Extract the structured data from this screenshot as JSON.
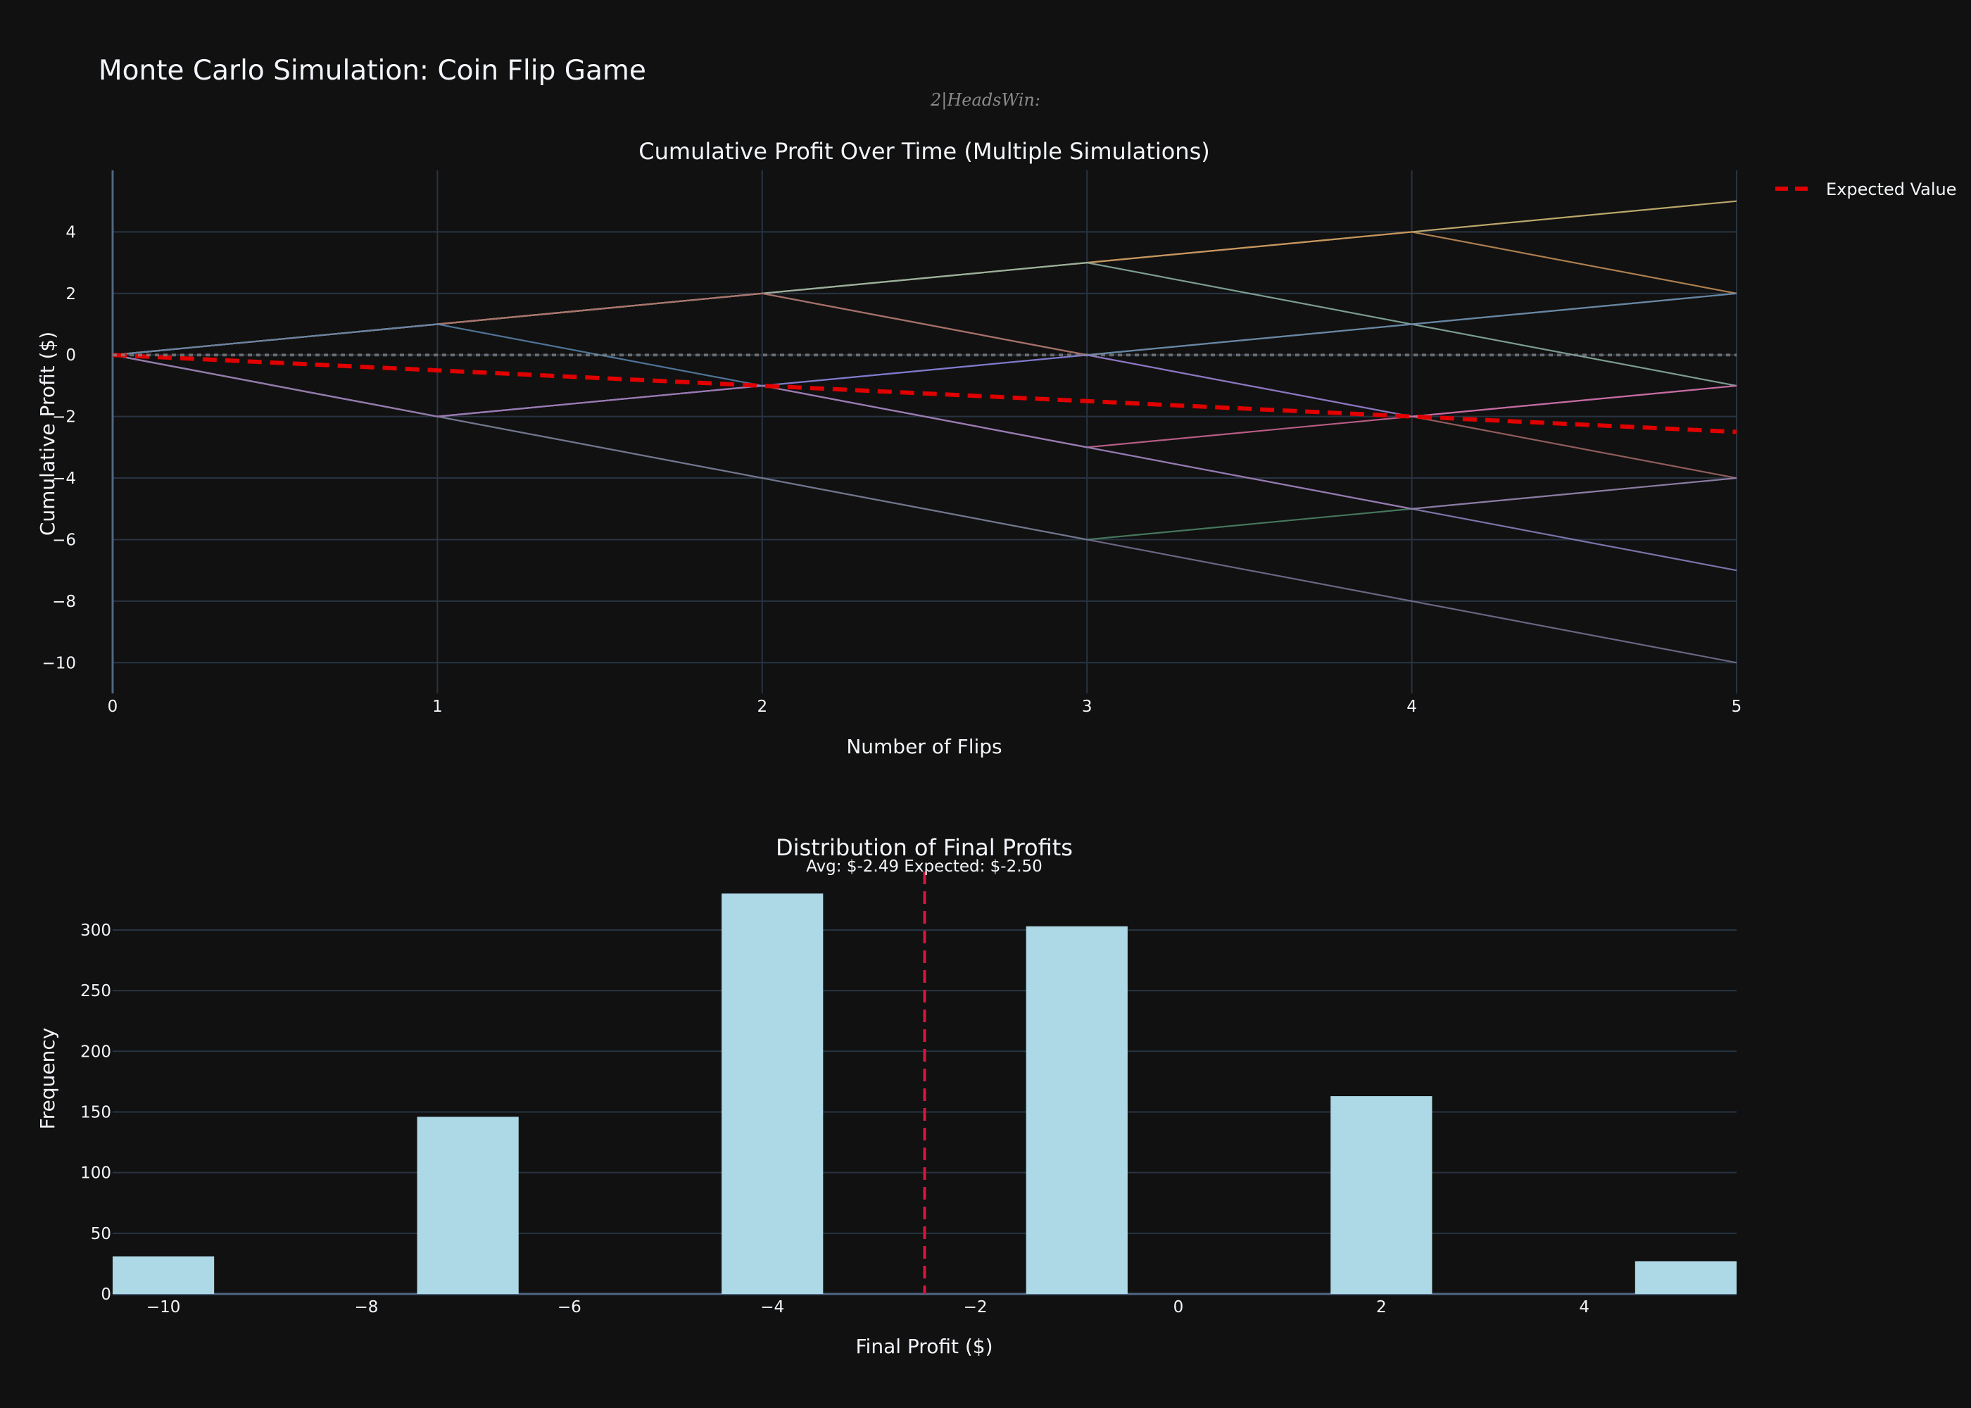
{
  "title": "Monte Carlo Simulation: Coin Flip Game",
  "subtitle": "2|HeadsWin:",
  "chart_data": [
    {
      "type": "line",
      "title": "Cumulative Profit Over Time (Multiple Simulations)",
      "xlabel": "Number of Flips",
      "ylabel": "Cumulative Profit ($)",
      "xlim": [
        0,
        5
      ],
      "ylim": [
        -11,
        6
      ],
      "xticks": [
        0,
        1,
        2,
        3,
        4,
        5
      ],
      "yticks": [
        4,
        2,
        0,
        -2,
        -4,
        -6,
        -8,
        -10
      ],
      "tick_labels_x": [
        "0",
        "1",
        "2",
        "3",
        "4",
        "5"
      ],
      "tick_labels_y": [
        "4",
        "2",
        "0",
        "−2",
        "−4",
        "−6",
        "−8",
        "−10"
      ],
      "grid": true,
      "legend": "top-right",
      "x": [
        0,
        1,
        2,
        3,
        4,
        5
      ],
      "series": [
        {
          "values": [
            0,
            1,
            2,
            3,
            4,
            5
          ],
          "color": "#d9c27a"
        },
        {
          "values": [
            0,
            1,
            2,
            3,
            4,
            2
          ],
          "color": "#c9935a"
        },
        {
          "values": [
            0,
            1,
            2,
            3,
            1,
            -1
          ],
          "color": "#8fb5a8"
        },
        {
          "values": [
            0,
            1,
            2,
            0,
            1,
            2
          ],
          "color": "#b8a57c"
        },
        {
          "values": [
            0,
            1,
            2,
            0,
            -2,
            -4
          ],
          "color": "#a86a6a"
        },
        {
          "values": [
            0,
            1,
            -1,
            0,
            1,
            2
          ],
          "color": "#5b86b0"
        },
        {
          "values": [
            0,
            -2,
            -1,
            0,
            -2,
            -1
          ],
          "color": "#8a7ad6"
        },
        {
          "values": [
            0,
            -2,
            -1,
            -3,
            -2,
            -1
          ],
          "color": "#d66a9a"
        },
        {
          "values": [
            0,
            -2,
            -1,
            -3,
            -5,
            -7
          ],
          "color": "#8c86c4"
        },
        {
          "values": [
            0,
            -2,
            -4,
            -6,
            -5,
            -4
          ],
          "color": "#4f8a6a"
        },
        {
          "values": [
            0,
            -2,
            -4,
            -6,
            -8,
            -10
          ],
          "color": "#7a7496"
        },
        {
          "values": [
            0,
            -2,
            -1,
            -3,
            -5,
            -4
          ],
          "color": "#9a7ab0"
        },
        {
          "name": "Expected Value",
          "values": [
            0,
            -0.5,
            -1,
            -1.5,
            -2,
            -2.5
          ],
          "color": "#e00000",
          "dash": true
        },
        {
          "values": [
            0,
            0,
            0,
            0,
            0,
            0
          ],
          "color": "#8a8a8a",
          "dash": true,
          "hline": true
        }
      ]
    },
    {
      "type": "bar",
      "title": "Distribution of Final Profits",
      "xlabel": "Final Profit ($)",
      "ylabel": "Frequency",
      "xlim": [
        -10.5,
        5.5
      ],
      "ylim": [
        0,
        340
      ],
      "xticks": [
        -10,
        -8,
        -6,
        -4,
        -2,
        0,
        2,
        4
      ],
      "yticks": [
        0,
        50,
        100,
        150,
        200,
        250,
        300
      ],
      "tick_labels_x": [
        "−10",
        "−8",
        "−6",
        "−4",
        "−2",
        "0",
        "2",
        "4"
      ],
      "tick_labels_y": [
        "0",
        "50",
        "100",
        "150",
        "200",
        "250",
        "300"
      ],
      "bar_color": "#add8e6",
      "bars": [
        {
          "x": -10,
          "value": 31
        },
        {
          "x": -7,
          "value": 146
        },
        {
          "x": -4,
          "value": 330
        },
        {
          "x": -1,
          "value": 303
        },
        {
          "x": 2,
          "value": 163
        },
        {
          "x": 5,
          "value": 27
        }
      ],
      "bar_width": 1,
      "vline": {
        "x": -2.5,
        "color": "#dc143c"
      },
      "annotation": "Avg: $-2.49 Expected: $-2.50"
    }
  ]
}
